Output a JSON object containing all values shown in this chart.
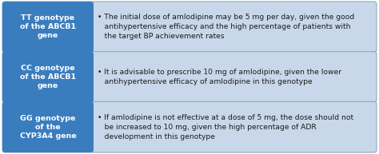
{
  "background_color": "#f0f0f0",
  "box_color": "#3a7dbf",
  "box_text_color": "#ffffff",
  "row_bg_color": "#c8d8ea",
  "border_color": "#8aaabb",
  "rows": [
    {
      "label": "TT genotype\nof the ABCB1\ngene",
      "text": "• The initial dose of amlodipine may be 5 mg per day, given the good\n   antihypertensive efficacy and the high percentage of patients with\n   the target BP achievement rates"
    },
    {
      "label": "CC genotype\nof the ABCB1\ngene",
      "text": "• It is advisable to prescribe 10 mg of amlodipine, given the lower\n   antihypertensive efficacy of amlodipine in this genotype"
    },
    {
      "label": "GG genotype\nof the\nCYP3A4 gene",
      "text": "• If amlodipine is not effective at a dose of 5 mg, the dose should not\n   be increased to 10 mg, given the high percentage of ADR\n   development in this genotype"
    }
  ],
  "label_fontsize": 6.8,
  "text_fontsize": 6.6,
  "figsize": [
    4.74,
    1.93
  ],
  "dpi": 100
}
